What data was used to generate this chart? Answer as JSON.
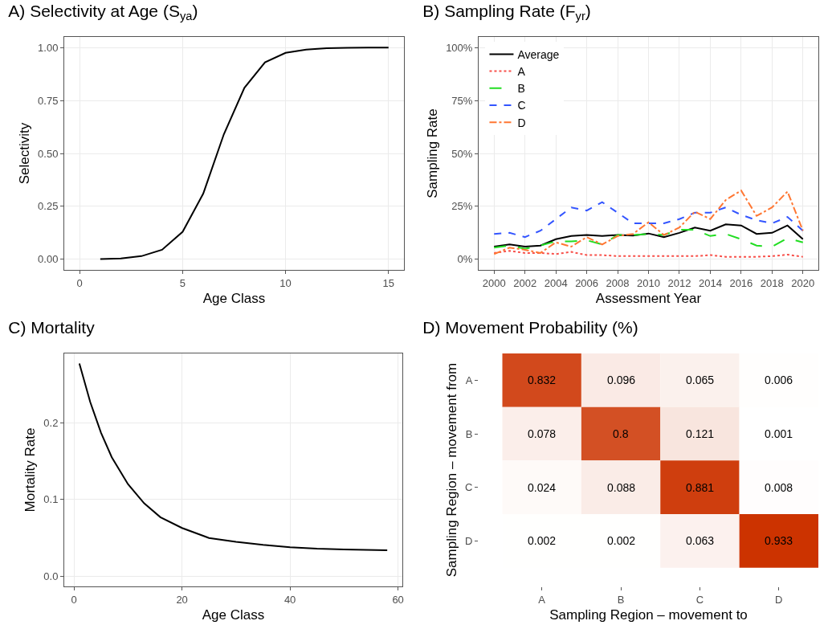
{
  "chart_data": [
    {
      "type": "line",
      "title": "A) Selectivity at Age (S$_{ya}$)",
      "xlabel": "Age Class",
      "ylabel": "Selectivity",
      "x": [
        1,
        2,
        3,
        4,
        5,
        6,
        7,
        8,
        9,
        10,
        11,
        12,
        13,
        14,
        15
      ],
      "series": [
        {
          "color": "#000000",
          "values": [
            0.001,
            0.004,
            0.015,
            0.045,
            0.13,
            0.31,
            0.59,
            0.81,
            0.93,
            0.975,
            0.99,
            0.997,
            0.999,
            1,
            1
          ]
        }
      ],
      "xlim": [
        -0.75,
        15.75
      ],
      "xticks": [
        0,
        5,
        10,
        15
      ],
      "ylim": [
        -0.05,
        1.05
      ],
      "yticks": [
        {
          "value": 0,
          "label": "0.00"
        },
        {
          "value": 0.25,
          "label": "0.25"
        },
        {
          "value": 0.5,
          "label": "0.50"
        },
        {
          "value": 0.75,
          "label": "0.75"
        },
        {
          "value": 1,
          "label": "1.00"
        }
      ],
      "grid": true,
      "line_style": "solid"
    },
    {
      "type": "line",
      "title": "B) Sampling Rate (F$_{yr}$)",
      "xlabel": "Assessment Year",
      "ylabel": "Sampling Rate",
      "x": [
        2000,
        2001,
        2002,
        2003,
        2004,
        2005,
        2006,
        2007,
        2008,
        2009,
        2010,
        2011,
        2012,
        2013,
        2014,
        2015,
        2016,
        2017,
        2018,
        2019,
        2020
      ],
      "series": [
        {
          "name": "Average",
          "color": "#000000",
          "line_style": "solid",
          "values": [
            6,
            7,
            6,
            6.5,
            9.5,
            11,
            11.5,
            11,
            11.5,
            11.2,
            12.2,
            10.5,
            12.5,
            15,
            13.5,
            16.5,
            16,
            12,
            12.5,
            16,
            9.5
          ]
        },
        {
          "name": "A",
          "color": "#f8504a",
          "line_style": "dotted",
          "values": [
            3,
            4,
            3,
            3,
            2.5,
            3.5,
            2,
            2,
            1.5,
            1.5,
            1.5,
            1.5,
            1.5,
            1.5,
            2,
            1.2,
            1.2,
            1.2,
            1.5,
            2.2,
            1.2
          ]
        },
        {
          "name": "B",
          "color": "#22dd22",
          "line_style": "longdash",
          "values": [
            5.5,
            6.5,
            5,
            6.5,
            8.5,
            8.5,
            9,
            7,
            11.5,
            11.5,
            12,
            11.5,
            14,
            14,
            11,
            12,
            9.5,
            6.5,
            6,
            10,
            8
          ]
        },
        {
          "name": "C",
          "color": "#3355ff",
          "line_style": "dashed",
          "values": [
            12,
            12.5,
            10.5,
            13.5,
            19,
            24.5,
            23,
            27,
            22,
            17,
            17,
            17,
            19,
            22,
            22,
            24.5,
            21,
            18.5,
            17,
            20,
            13.5
          ]
        },
        {
          "name": "D",
          "color": "#ff7733",
          "line_style": "dashdot",
          "values": [
            2.5,
            5.5,
            4.5,
            3,
            8,
            6,
            10.5,
            7,
            11,
            12,
            17.5,
            11.5,
            15,
            22.5,
            19,
            28,
            32.5,
            20.5,
            24.5,
            32,
            13.5
          ]
        }
      ],
      "xlim": [
        1999,
        2021
      ],
      "xticks": [
        2000,
        2002,
        2004,
        2006,
        2008,
        2010,
        2012,
        2014,
        2016,
        2018,
        2020
      ],
      "ylim": [
        -5,
        105
      ],
      "yticks": [
        {
          "value": 0,
          "label": "0%"
        },
        {
          "value": 25,
          "label": "25%"
        },
        {
          "value": 50,
          "label": "50%"
        },
        {
          "value": 75,
          "label": "75%"
        },
        {
          "value": 100,
          "label": "100%"
        }
      ],
      "grid": true,
      "legend": "top left"
    },
    {
      "type": "line",
      "title": "C) Mortality",
      "xlabel": "Age Class",
      "ylabel": "Mortality Rate",
      "x": [
        1,
        3,
        5,
        7,
        10,
        13,
        16,
        20,
        25,
        30,
        35,
        40,
        45,
        50,
        58
      ],
      "series": [
        {
          "color": "#000000",
          "values": [
            0.277,
            0.227,
            0.187,
            0.155,
            0.12,
            0.095,
            0.077,
            0.063,
            0.05,
            0.045,
            0.041,
            0.038,
            0.036,
            0.035,
            0.034
          ]
        }
      ],
      "xlim": [
        -1.8,
        60.8
      ],
      "xticks": [
        0,
        20,
        40,
        60
      ],
      "ylim": [
        -0.013,
        0.29
      ],
      "yticks": [
        {
          "value": 0,
          "label": "0.0"
        },
        {
          "value": 0.1,
          "label": "0.1"
        },
        {
          "value": 0.2,
          "label": "0.2"
        }
      ],
      "grid": true,
      "line_style": "solid"
    },
    {
      "type": "heatmap",
      "title": "D) Movement Probability (%)",
      "xlabel": "Sampling Region – movement to",
      "ylabel": "Sampling Region – movement from",
      "categories": [
        "A",
        "B",
        "C",
        "D"
      ],
      "y_categories": [
        "A",
        "B",
        "C",
        "D"
      ],
      "color": "#cc3300",
      "cells": [
        [
          0.832,
          0.096,
          0.065,
          0.006
        ],
        [
          0.078,
          0.8,
          0.121,
          0.001
        ],
        [
          0.024,
          0.088,
          0.881,
          0.008
        ],
        [
          0.002,
          0.002,
          0.063,
          0.933
        ]
      ],
      "data_labels": true
    }
  ]
}
